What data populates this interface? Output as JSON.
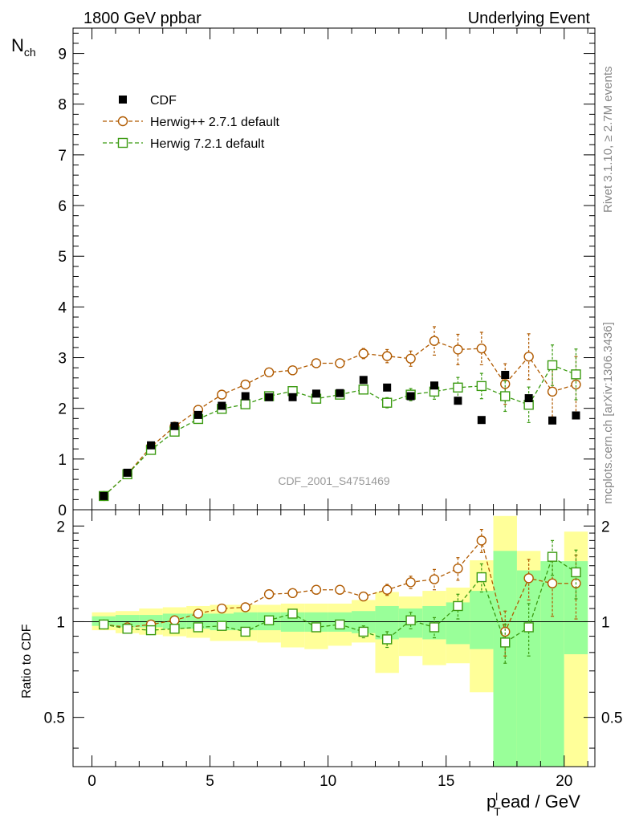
{
  "header": {
    "left": "1800 GeV ppbar",
    "right": "Underlying Event"
  },
  "side_text": {
    "rivet": "Rivet 3.1.10, ≥ 2.7M events",
    "mcplots": "mcplots.cern.ch [arXiv:1306.3436]"
  },
  "colors": {
    "data": "#000000",
    "herwigpp": "#b05a00",
    "herwig7": "#3a9a10",
    "band_inner": "#99ff99",
    "band_outer": "#ffff99"
  },
  "chart_data": [
    {
      "type": "scatter",
      "panel": "main",
      "title": "CDF_2001_S4751469",
      "ylabel_main": "N",
      "ylabel_sub": "ch",
      "xlim": [
        -0.8,
        21.3
      ],
      "ylim": [
        0,
        9.5
      ],
      "yticks": [
        0,
        1,
        2,
        3,
        4,
        5,
        6,
        7,
        8,
        9
      ],
      "ytick_labels": [
        "0",
        "1",
        "2",
        "3",
        "4",
        "5",
        "6",
        "7",
        "8",
        "9"
      ],
      "x": [
        0.5,
        1.5,
        2.5,
        3.5,
        4.5,
        5.5,
        6.5,
        7.5,
        8.5,
        9.5,
        10.5,
        11.5,
        12.5,
        13.5,
        14.5,
        15.5,
        16.5,
        17.5,
        18.5,
        19.5,
        20.5
      ],
      "legend": [
        "CDF",
        "Herwig++ 2.7.1 default",
        "Herwig 7.2.1 default"
      ],
      "series": [
        {
          "name": "CDF",
          "marker": "filled-square",
          "values": [
            0.27,
            0.73,
            1.27,
            1.65,
            1.87,
            2.05,
            2.24,
            2.22,
            2.22,
            2.29,
            2.3,
            2.56,
            2.41,
            2.24,
            2.45,
            2.15,
            1.77,
            2.66,
            2.2,
            1.76,
            1.86
          ]
        },
        {
          "name": "Herwig++ 2.7.1 default",
          "marker": "open-circle",
          "values": [
            0.27,
            0.7,
            1.24,
            1.64,
            1.97,
            2.27,
            2.47,
            2.71,
            2.75,
            2.89,
            2.89,
            3.08,
            3.03,
            2.98,
            3.33,
            3.16,
            3.18,
            2.48,
            3.02,
            2.33,
            2.47
          ],
          "errors": [
            0.02,
            0.03,
            0.04,
            0.05,
            0.05,
            0.05,
            0.05,
            0.06,
            0.06,
            0.06,
            0.07,
            0.1,
            0.13,
            0.15,
            0.28,
            0.3,
            0.32,
            0.4,
            0.45,
            0.5,
            0.55
          ]
        },
        {
          "name": "Herwig 7.2.1 default",
          "marker": "open-square",
          "values": [
            0.27,
            0.7,
            1.18,
            1.54,
            1.79,
            1.99,
            2.08,
            2.24,
            2.34,
            2.19,
            2.27,
            2.37,
            2.11,
            2.27,
            2.33,
            2.41,
            2.44,
            2.24,
            2.07,
            2.85,
            2.67
          ],
          "errors": [
            0.02,
            0.03,
            0.03,
            0.04,
            0.04,
            0.05,
            0.05,
            0.05,
            0.06,
            0.06,
            0.07,
            0.08,
            0.1,
            0.12,
            0.15,
            0.2,
            0.25,
            0.3,
            0.35,
            0.4,
            0.5
          ]
        }
      ]
    },
    {
      "type": "scatter",
      "panel": "ratio",
      "ylabel": "Ratio to CDF",
      "xlabel_main": "p",
      "xlabel_sub": "T",
      "xlabel_sup": "l",
      "xlabel_rest": "ead / GeV",
      "xlim": [
        -0.8,
        21.3
      ],
      "ylim": [
        0.35,
        2.25
      ],
      "xticks": [
        0,
        5,
        10,
        15,
        20
      ],
      "xtick_labels": [
        "0",
        "5",
        "10",
        "15",
        "20"
      ],
      "yticks": [
        0.5,
        1,
        2
      ],
      "ytick_labels": [
        "0.5",
        "1",
        "2"
      ],
      "bins": [
        [
          0,
          1
        ],
        [
          1,
          2
        ],
        [
          2,
          3
        ],
        [
          3,
          4
        ],
        [
          4,
          5
        ],
        [
          5,
          6
        ],
        [
          6,
          7
        ],
        [
          7,
          8
        ],
        [
          8,
          9
        ],
        [
          9,
          10
        ],
        [
          10,
          11
        ],
        [
          11,
          12
        ],
        [
          12,
          13
        ],
        [
          13,
          14
        ],
        [
          14,
          15
        ],
        [
          15,
          16
        ],
        [
          16,
          17
        ],
        [
          17,
          18
        ],
        [
          18,
          19
        ],
        [
          19,
          20
        ],
        [
          20,
          21
        ]
      ],
      "band_inner": [
        [
          0.97,
          1.04
        ],
        [
          0.96,
          1.05
        ],
        [
          0.96,
          1.05
        ],
        [
          0.95,
          1.06
        ],
        [
          0.95,
          1.06
        ],
        [
          0.94,
          1.06
        ],
        [
          0.94,
          1.07
        ],
        [
          0.94,
          1.07
        ],
        [
          0.93,
          1.07
        ],
        [
          0.93,
          1.07
        ],
        [
          0.93,
          1.07
        ],
        [
          0.92,
          1.08
        ],
        [
          0.88,
          1.12
        ],
        [
          0.89,
          1.1
        ],
        [
          0.88,
          1.12
        ],
        [
          0.85,
          1.15
        ],
        [
          0.82,
          1.25
        ],
        [
          0.35,
          1.67
        ],
        [
          0.35,
          1.45
        ],
        [
          0.35,
          1.55
        ],
        [
          0.79,
          1.55
        ]
      ],
      "band_outer": [
        [
          0.94,
          1.07
        ],
        [
          0.92,
          1.08
        ],
        [
          0.91,
          1.1
        ],
        [
          0.9,
          1.11
        ],
        [
          0.89,
          1.12
        ],
        [
          0.87,
          1.13
        ],
        [
          0.87,
          1.13
        ],
        [
          0.86,
          1.13
        ],
        [
          0.83,
          1.14
        ],
        [
          0.82,
          1.14
        ],
        [
          0.84,
          1.14
        ],
        [
          0.86,
          1.17
        ],
        [
          0.69,
          1.24
        ],
        [
          0.78,
          1.2
        ],
        [
          0.73,
          1.25
        ],
        [
          0.74,
          1.28
        ],
        [
          0.6,
          1.56
        ],
        [
          0.35,
          2.15
        ],
        [
          0.35,
          1.67
        ],
        [
          0.35,
          1.35
        ],
        [
          0.35,
          1.92
        ]
      ],
      "series": [
        {
          "name": "Herwig++ 2.7.1 default",
          "values": [
            0.98,
            0.96,
            0.98,
            1.01,
            1.06,
            1.1,
            1.11,
            1.22,
            1.23,
            1.26,
            1.26,
            1.2,
            1.26,
            1.33,
            1.36,
            1.47,
            1.8,
            0.93,
            1.37,
            1.32,
            1.32
          ],
          "errors": [
            0.01,
            0.01,
            0.01,
            0.02,
            0.02,
            0.02,
            0.02,
            0.03,
            0.03,
            0.03,
            0.03,
            0.04,
            0.05,
            0.06,
            0.1,
            0.12,
            0.15,
            0.15,
            0.2,
            0.28,
            0.3
          ]
        },
        {
          "name": "Herwig 7.2.1 default",
          "values": [
            0.98,
            0.95,
            0.94,
            0.95,
            0.96,
            0.97,
            0.93,
            1.01,
            1.06,
            0.96,
            0.98,
            0.93,
            0.88,
            1.01,
            0.96,
            1.12,
            1.38,
            0.86,
            0.96,
            1.6,
            1.43
          ],
          "errors": [
            0.01,
            0.01,
            0.01,
            0.02,
            0.02,
            0.02,
            0.02,
            0.03,
            0.03,
            0.03,
            0.03,
            0.04,
            0.05,
            0.06,
            0.07,
            0.1,
            0.14,
            0.12,
            0.18,
            0.2,
            0.25
          ]
        }
      ]
    }
  ]
}
